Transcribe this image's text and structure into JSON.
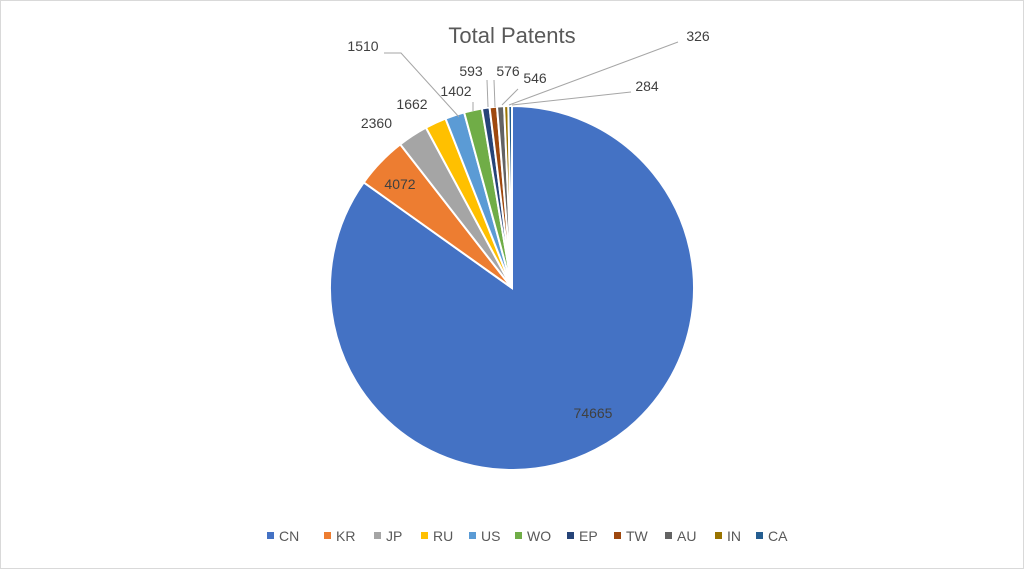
{
  "chart_data": {
    "type": "pie",
    "title": "Total Patents",
    "categories": [
      "CN",
      "KR",
      "JP",
      "RU",
      "US",
      "WO",
      "EP",
      "TW",
      "AU",
      "IN",
      "CA"
    ],
    "values": [
      74665,
      4072,
      2360,
      1662,
      1510,
      1402,
      593,
      576,
      546,
      326,
      284
    ],
    "colors": [
      "#4472c4",
      "#ed7d31",
      "#a5a5a5",
      "#ffc000",
      "#5b9bd5",
      "#70ad47",
      "#264478",
      "#9e480e",
      "#636363",
      "#997300",
      "#255e91"
    ],
    "data_labels": [
      "74665",
      "4072",
      "2360",
      "1662",
      "1510",
      "1402",
      "593",
      "576",
      "546",
      "326",
      "284"
    ],
    "legend_position": "bottom",
    "start_angle": "12 o'clock",
    "direction": "clockwise"
  }
}
